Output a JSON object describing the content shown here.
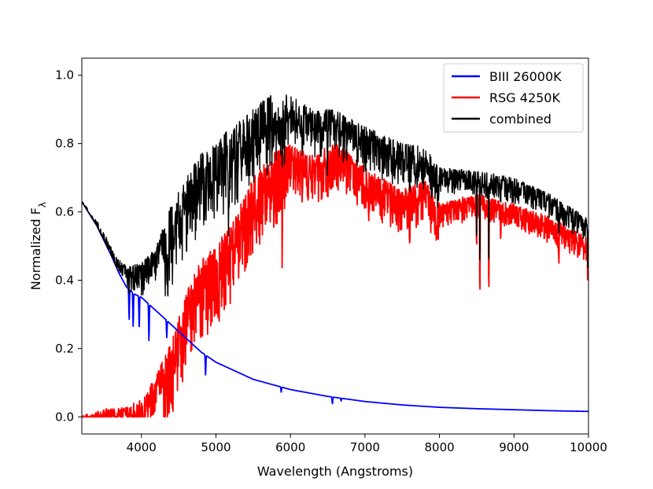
{
  "chart_data": {
    "type": "line",
    "title": "",
    "xlabel": "Wavelength (Angstroms)",
    "ylabel": {
      "prefix": "Normalized F",
      "subscript": "λ"
    },
    "xlim": [
      3200,
      10000
    ],
    "ylim": [
      -0.05,
      1.05
    ],
    "x_ticks": [
      4000,
      5000,
      6000,
      7000,
      8000,
      9000,
      10000
    ],
    "y_ticks": [
      0.0,
      0.2,
      0.4,
      0.6,
      0.8,
      1.0
    ],
    "x_tick_labels": [
      "4000",
      "5000",
      "6000",
      "7000",
      "8000",
      "9000",
      "10000"
    ],
    "y_tick_labels": [
      "0.0",
      "0.2",
      "0.4",
      "0.6",
      "0.8",
      "1.0"
    ],
    "grid": false,
    "legend_position": "top-right",
    "series": [
      {
        "name": "BIII 26000K",
        "color": "#0000ff",
        "x": [
          3200,
          3400,
          3600,
          3700,
          3800,
          3900,
          4000,
          4100,
          4200,
          4300,
          4400,
          4500,
          4600,
          4700,
          4800,
          5000,
          5200,
          5500,
          6000,
          6500,
          7000,
          7500,
          8000,
          8500,
          9000,
          9500,
          10000
        ],
        "y": [
          0.63,
          0.56,
          0.47,
          0.42,
          0.38,
          0.36,
          0.35,
          0.33,
          0.31,
          0.29,
          0.27,
          0.25,
          0.23,
          0.21,
          0.19,
          0.16,
          0.14,
          0.11,
          0.08,
          0.06,
          0.045,
          0.035,
          0.028,
          0.024,
          0.021,
          0.018,
          0.016
        ],
        "absorption_lines": [
          {
            "x": 3835,
            "depth": 0.09
          },
          {
            "x": 3889,
            "depth": 0.1
          },
          {
            "x": 3970,
            "depth": 0.1
          },
          {
            "x": 4101,
            "depth": 0.11
          },
          {
            "x": 4340,
            "depth": 0.05
          },
          {
            "x": 4861,
            "depth": 0.06
          },
          {
            "x": 5876,
            "depth": 0.015
          },
          {
            "x": 6563,
            "depth": 0.02
          },
          {
            "x": 6680,
            "depth": 0.008
          }
        ]
      },
      {
        "name": "RSG 4250K",
        "color": "#ff0000",
        "x": [
          3200,
          3500,
          3800,
          4000,
          4200,
          4400,
          4600,
          4800,
          5000,
          5200,
          5500,
          5800,
          6000,
          6300,
          6600,
          7000,
          7500,
          7800,
          8000,
          8500,
          9000,
          9500,
          10000
        ],
        "y": [
          0.0,
          0.02,
          0.03,
          0.05,
          0.12,
          0.22,
          0.36,
          0.46,
          0.5,
          0.56,
          0.7,
          0.78,
          0.8,
          0.76,
          0.8,
          0.73,
          0.66,
          0.69,
          0.62,
          0.65,
          0.62,
          0.58,
          0.52
        ]
      },
      {
        "name": "combined",
        "color": "#000000",
        "x": [
          3200,
          3400,
          3600,
          3800,
          4000,
          4200,
          4400,
          4600,
          4800,
          5000,
          5200,
          5400,
          5600,
          5800,
          6000,
          6300,
          6600,
          7000,
          7500,
          7800,
          8000,
          8500,
          9000,
          9500,
          10000
        ],
        "y": [
          0.63,
          0.56,
          0.48,
          0.44,
          0.45,
          0.5,
          0.62,
          0.7,
          0.77,
          0.8,
          0.85,
          0.88,
          0.92,
          0.95,
          0.94,
          0.9,
          0.9,
          0.85,
          0.8,
          0.79,
          0.73,
          0.72,
          0.7,
          0.65,
          0.58
        ]
      }
    ]
  }
}
